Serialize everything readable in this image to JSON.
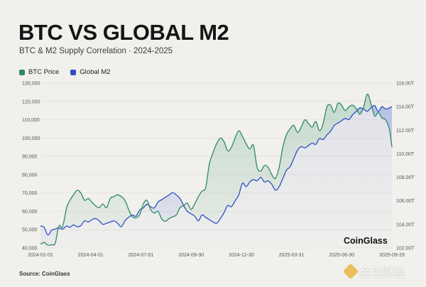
{
  "header": {
    "title": "BTC VS GLOBAL M2",
    "subtitle": "BTC & M2 Supply Correlation · 2024-2025"
  },
  "footer": {
    "source": "Source: CoinGlass",
    "watermark": "金色财经"
  },
  "colors": {
    "btc": "#2f8a63",
    "m2": "#2f4fc7",
    "background": "#f1f0ec",
    "grid": "#e0dfda"
  },
  "chart_data": {
    "type": "line",
    "title": "BTC VS GLOBAL M2",
    "subtitle": "BTC & M2 Supply Correlation · 2024-2025",
    "brand_label": "CoinGlass",
    "legend": [
      {
        "name": "BTC Price",
        "color": "#2f8a63"
      },
      {
        "name": "Global M2",
        "color": "#2f4fc7"
      }
    ],
    "legend_position": "top-left",
    "grid": true,
    "x_ticks": [
      "2024-01-01",
      "2024-04-01",
      "2024-07-01",
      "2024-09-30",
      "2024-12-30",
      "2025-03-31",
      "2025-06-30",
      "2025-09-29"
    ],
    "x_range_days": [
      0,
      670
    ],
    "y_left": {
      "ticks": [
        "40,000",
        "50,000",
        "60,000",
        "70,000",
        "80,000",
        "90,000",
        "100,000",
        "110,000",
        "120,000",
        "130,000"
      ],
      "ylim": [
        40000,
        130000
      ]
    },
    "y_right": {
      "ticks": [
        "102.00T",
        "104.00T",
        "106.00T",
        "108.00T",
        "110.00T",
        "112.00T",
        "114.00T",
        "116.00T"
      ],
      "ylim": [
        102,
        116
      ]
    },
    "series": [
      {
        "name": "BTC Price",
        "axis": "left",
        "x_days": [
          0,
          7,
          14,
          21,
          28,
          35,
          42,
          50,
          56,
          63,
          70,
          77,
          84,
          91,
          98,
          105,
          112,
          119,
          126,
          133,
          140,
          147,
          154,
          161,
          168,
          175,
          182,
          189,
          196,
          203,
          210,
          217,
          224,
          231,
          238,
          245,
          252,
          259,
          266,
          273,
          280,
          287,
          294,
          301,
          308,
          315,
          322,
          329,
          336,
          343,
          350,
          357,
          364,
          371,
          378,
          385,
          392,
          399,
          406,
          413,
          420,
          427,
          434,
          441,
          448,
          455,
          462,
          469,
          476,
          483,
          490,
          497,
          504,
          511,
          518,
          525,
          532,
          539,
          546,
          553,
          560,
          567,
          574,
          581,
          588,
          595,
          602,
          609,
          616,
          623,
          630,
          637,
          644,
          651,
          658,
          665,
          670
        ],
        "values": [
          42000,
          43000,
          41500,
          41800,
          42500,
          52000,
          51500,
          62000,
          66000,
          69000,
          71500,
          70000,
          66000,
          67000,
          65000,
          63000,
          62000,
          64000,
          62000,
          67000,
          68000,
          69000,
          68000,
          66000,
          61000,
          57000,
          56500,
          58000,
          64000,
          66000,
          61000,
          59000,
          60000,
          56000,
          54500,
          56000,
          57000,
          58000,
          62000,
          63000,
          64500,
          61000,
          64000,
          68000,
          71000,
          73000,
          86000,
          92000,
          97000,
          100000,
          98000,
          93000,
          95000,
          100000,
          104000,
          101000,
          97000,
          94000,
          96000,
          84000,
          82000,
          85000,
          84000,
          80000,
          78000,
          84000,
          95000,
          102000,
          105000,
          107000,
          103000,
          106000,
          110000,
          108000,
          106000,
          109000,
          104000,
          108000,
          117000,
          118000,
          114000,
          119000,
          118000,
          115000,
          117000,
          118000,
          116000,
          113000,
          117000,
          124000,
          119000,
          112000,
          114000,
          111000,
          110000,
          105000,
          95000
        ]
      },
      {
        "name": "Global M2",
        "axis": "right",
        "x_days": [
          0,
          7,
          14,
          21,
          28,
          35,
          42,
          50,
          56,
          63,
          70,
          77,
          84,
          91,
          98,
          105,
          112,
          119,
          126,
          133,
          140,
          147,
          154,
          161,
          168,
          175,
          182,
          189,
          196,
          203,
          210,
          217,
          224,
          231,
          238,
          245,
          252,
          259,
          266,
          273,
          280,
          287,
          294,
          301,
          308,
          315,
          322,
          329,
          336,
          343,
          350,
          357,
          364,
          371,
          378,
          385,
          392,
          399,
          406,
          413,
          420,
          427,
          434,
          441,
          448,
          455,
          462,
          469,
          476,
          483,
          490,
          497,
          504,
          511,
          518,
          525,
          532,
          539,
          546,
          553,
          560,
          567,
          574,
          581,
          588,
          595,
          602,
          609,
          616,
          623,
          630,
          637,
          644,
          651,
          658,
          665,
          670
        ],
        "values": [
          103.85,
          103.75,
          103.1,
          103.5,
          103.6,
          103.7,
          103.6,
          103.85,
          103.75,
          103.95,
          103.8,
          103.9,
          104.3,
          104.2,
          104.4,
          104.5,
          104.3,
          104.0,
          104.1,
          104.2,
          104.3,
          104.1,
          103.8,
          104.3,
          104.6,
          104.8,
          104.7,
          105.2,
          105.4,
          105.7,
          105.5,
          105.4,
          105.9,
          106.1,
          106.3,
          106.5,
          106.7,
          106.5,
          106.2,
          105.6,
          105.1,
          104.9,
          104.7,
          104.3,
          104.8,
          104.6,
          104.4,
          104.2,
          104.1,
          104.5,
          105.0,
          105.6,
          105.5,
          106.0,
          106.5,
          107.5,
          107.2,
          107.6,
          107.8,
          107.7,
          108.0,
          107.6,
          107.7,
          107.4,
          106.9,
          107.2,
          107.9,
          108.6,
          108.9,
          109.6,
          110.3,
          110.6,
          110.5,
          110.7,
          110.9,
          110.8,
          111.3,
          111.2,
          111.6,
          111.9,
          112.4,
          112.6,
          112.8,
          113.0,
          112.9,
          113.3,
          113.6,
          113.9,
          113.8,
          113.6,
          113.9,
          114.1,
          113.6,
          114.0,
          113.8,
          113.9,
          114.0
        ]
      }
    ]
  }
}
